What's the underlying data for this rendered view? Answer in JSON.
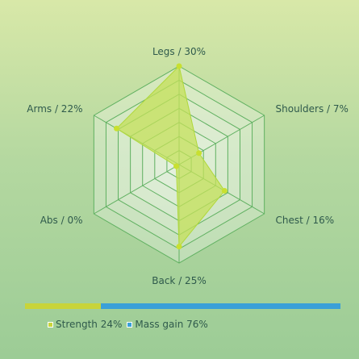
{
  "chart_data": {
    "type": "radar",
    "axes": [
      {
        "label": "Legs / 30%",
        "value": 30
      },
      {
        "label": "Shoulders / 7%",
        "value": 7
      },
      {
        "label": "Chest / 16%",
        "value": 16
      },
      {
        "label": "Back / 25%",
        "value": 25
      },
      {
        "label": "Abs / 0%",
        "value": 0
      },
      {
        "label": "Arms / 22%",
        "value": 22
      }
    ],
    "rmax": 30,
    "rings": 7,
    "grid": true,
    "colors": {
      "grid": "#5fb060",
      "area_fill": "#c4e05a",
      "area_stroke": "#b0d83a",
      "point": "#c8e030"
    }
  },
  "legend": {
    "items": [
      {
        "label": "Strength 24%",
        "value": 24,
        "color": "#c8d43a"
      },
      {
        "label": "Mass gain 76%",
        "value": 76,
        "color": "#3aa0d8"
      }
    ]
  }
}
